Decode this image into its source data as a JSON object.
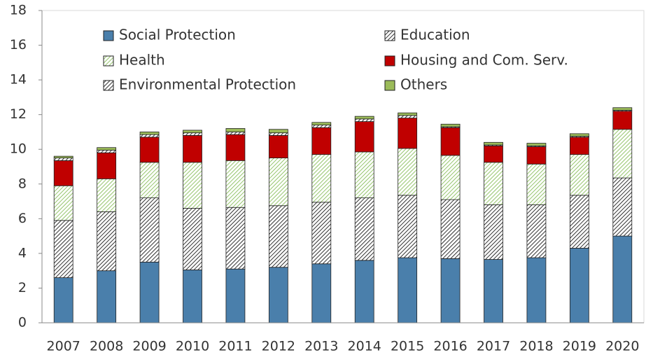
{
  "chart_data": {
    "type": "stacked_bar",
    "categories": [
      "2007",
      "2008",
      "2009",
      "2010",
      "2011",
      "2012",
      "2013",
      "2014",
      "2015",
      "2016",
      "2017",
      "2018",
      "2019",
      "2020"
    ],
    "series": [
      {
        "name": "Social Protection",
        "color": "#4a7fab",
        "pattern": "solid",
        "values": [
          2.6,
          3.0,
          3.5,
          3.05,
          3.1,
          3.2,
          3.4,
          3.6,
          3.75,
          3.7,
          3.65,
          3.75,
          4.3,
          5.0
        ]
      },
      {
        "name": "Education",
        "color": "#000000",
        "pattern": "hatch",
        "values": [
          3.3,
          3.4,
          3.7,
          3.55,
          3.55,
          3.55,
          3.55,
          3.6,
          3.6,
          3.4,
          3.15,
          3.05,
          3.05,
          3.35
        ]
      },
      {
        "name": "Health",
        "color": "#7ab648",
        "pattern": "hatch",
        "values": [
          2.0,
          1.9,
          2.05,
          2.65,
          2.7,
          2.75,
          2.75,
          2.65,
          2.7,
          2.55,
          2.45,
          2.35,
          2.35,
          2.8
        ]
      },
      {
        "name": "Housing and Com. Serv.",
        "color": "#c00000",
        "pattern": "solid",
        "values": [
          1.45,
          1.5,
          1.45,
          1.55,
          1.5,
          1.3,
          1.55,
          1.75,
          1.75,
          1.6,
          0.95,
          1.0,
          1.0,
          1.05
        ]
      },
      {
        "name": "Environmental Protection",
        "color": "#000000",
        "pattern": "hatch",
        "values": [
          0.15,
          0.15,
          0.15,
          0.15,
          0.15,
          0.15,
          0.15,
          0.15,
          0.15,
          0.05,
          0.05,
          0.05,
          0.05,
          0.05
        ]
      },
      {
        "name": "Others",
        "color": "#9bbb59",
        "pattern": "solid",
        "values": [
          0.1,
          0.15,
          0.15,
          0.15,
          0.2,
          0.2,
          0.15,
          0.15,
          0.15,
          0.15,
          0.15,
          0.15,
          0.15,
          0.15
        ]
      }
    ],
    "ylim": [
      0,
      18
    ],
    "yticks": [
      0,
      2,
      4,
      6,
      8,
      10,
      12,
      14,
      16,
      18
    ],
    "grid": false
  }
}
